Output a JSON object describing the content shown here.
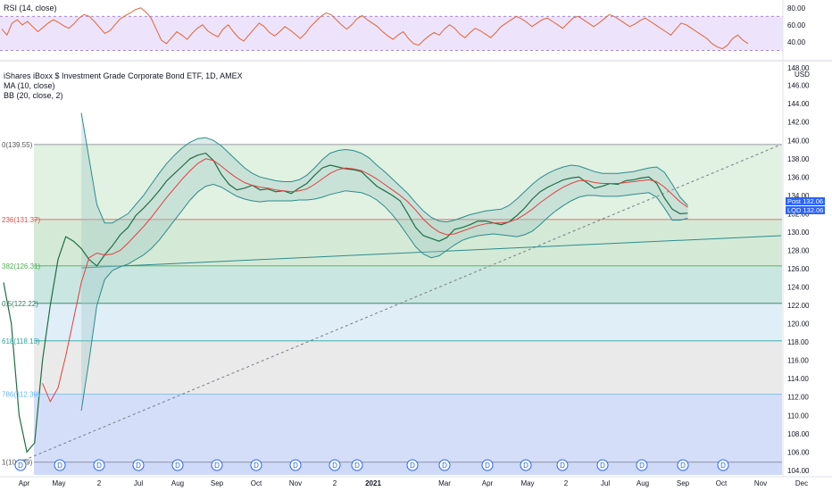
{
  "rsi_panel": {
    "legend": "RSI (14, close)",
    "axis_ticks": [
      "80.00",
      "60.00",
      "40.00"
    ],
    "upper_band": 70,
    "lower_band": 30,
    "values": [
      55,
      48,
      62,
      66,
      60,
      64,
      58,
      52,
      57,
      62,
      66,
      63,
      59,
      56,
      61,
      68,
      72,
      70,
      64,
      57,
      50,
      53,
      60,
      67,
      71,
      74,
      78,
      80,
      75,
      68,
      55,
      42,
      38,
      45,
      52,
      48,
      43,
      50,
      56,
      60,
      53,
      49,
      46,
      55,
      60,
      52,
      45,
      41,
      48,
      55,
      62,
      58,
      51,
      47,
      52,
      58,
      54,
      49,
      44,
      50,
      58,
      64,
      70,
      74,
      72,
      66,
      60,
      55,
      60,
      67,
      71,
      66,
      62,
      58,
      52,
      47,
      43,
      48,
      52,
      44,
      38,
      36,
      42,
      47,
      51,
      48,
      55,
      60,
      56,
      49,
      45,
      51,
      56,
      53,
      49,
      45,
      51,
      58,
      62,
      66,
      70,
      67,
      63,
      58,
      62,
      66,
      68,
      64,
      60,
      56,
      62,
      68,
      70,
      66,
      62,
      58,
      62,
      67,
      72,
      70,
      66,
      62,
      58,
      61,
      65,
      68,
      64,
      60,
      56,
      52,
      48,
      55,
      62,
      60,
      56,
      52,
      48,
      44,
      38,
      34,
      32,
      36,
      44,
      48,
      42,
      38
    ]
  },
  "main_panel": {
    "legend_title": "iShares iBoxx $ Investment Grade Corporate Bond ETF, 1D, AMEX",
    "legend_ma": "MA (10, close)",
    "legend_bb": "BB (20, close, 2)",
    "currency": "USD",
    "price_ticks": [
      "146.00",
      "144.00",
      "142.00",
      "140.00",
      "138.00",
      "136.00",
      "134.00",
      "132.00",
      "130.00",
      "128.00",
      "126.00",
      "124.00",
      "122.00",
      "120.00",
      "118.00",
      "116.00",
      "114.00",
      "112.00",
      "110.00",
      "108.00",
      "106.00",
      "104.00"
    ],
    "top_partial_tick": "148.00",
    "tags": [
      {
        "label": "Post",
        "value": "132.06",
        "color": "#2962ff"
      },
      {
        "label": "LQD",
        "value": "132.06",
        "color": "#2962ff"
      }
    ],
    "time_ticks": [
      "Apr",
      "May",
      "2",
      "Jul",
      "Aug",
      "Sep",
      "Oct",
      "Nov",
      "2",
      "2021",
      "Mar",
      "Apr",
      "May",
      "2",
      "Jul",
      "Aug",
      "Sep",
      "Oct",
      "Nov",
      "Dec"
    ],
    "dividend_marker": "D"
  },
  "chart_data": {
    "type": "line",
    "title": "iShares iBoxx $ Investment Grade Corporate Bond ETF, 1D, AMEX",
    "xlabel": "",
    "ylabel": "USD",
    "ylim": [
      103.5,
      148.5
    ],
    "fib_levels": [
      {
        "label": "0(139.55)",
        "value": 139.55,
        "band_color": "#f7c9c9",
        "line_color": "#787b86"
      },
      {
        "label": "236(131.37)",
        "value": 131.37,
        "band_color": "#d7ecd8",
        "line_color": "#e04b4b"
      },
      {
        "label": "382(126.31)",
        "value": 126.31,
        "band_color": "#c6e3c8",
        "line_color": "#4caf50"
      },
      {
        "label": "0.5(122.22)",
        "value": 122.22,
        "band_color": "#b8ded7",
        "line_color": "#2e7d5e"
      },
      {
        "label": "618(118.13)",
        "value": 118.13,
        "band_color": "#d6e8f6",
        "line_color": "#26a69a"
      },
      {
        "label": "786(112.30)",
        "value": 112.3,
        "band_color": "#e3e3e3",
        "line_color": "#64b5f6"
      },
      {
        "label": "1(104.89)",
        "value": 104.89,
        "band_color": "#c7d3f7",
        "line_color": "#787b86"
      }
    ],
    "series": [
      {
        "name": "LQD",
        "color": "#1f6e43",
        "x": [
          0,
          2,
          4,
          6,
          8,
          10,
          12,
          14,
          16,
          18,
          20,
          22,
          24,
          26,
          28,
          30,
          32,
          34,
          36,
          38,
          40,
          42,
          44,
          46,
          48,
          50,
          52,
          54,
          56,
          58,
          60,
          62,
          64,
          66,
          68,
          70,
          72,
          74,
          76,
          78,
          80,
          82,
          84,
          86,
          88,
          90,
          92,
          94,
          96,
          98,
          100,
          102,
          104,
          106,
          108,
          110,
          112,
          114,
          116,
          118,
          120,
          122,
          124,
          126,
          128,
          130,
          132,
          134,
          136,
          138,
          140,
          142,
          144,
          146,
          148,
          150,
          152,
          154,
          156,
          158,
          160,
          162,
          164,
          166,
          168,
          170,
          172,
          174,
          176,
          178,
          180,
          182,
          184,
          186,
          188,
          190,
          192,
          194,
          196,
          198,
          200
        ],
        "values": [
          124.5,
          120,
          110,
          106,
          107,
          116,
          122,
          127,
          129.5,
          129,
          128.2,
          127,
          126.3,
          127.5,
          128.5,
          129.7,
          130.5,
          131.8,
          132.6,
          133.5,
          134.5,
          135.6,
          136.4,
          137.2,
          138,
          138.4,
          138.6,
          137.8,
          136.3,
          135.2,
          134.6,
          134.8,
          135.1,
          134.6,
          134.7,
          134.4,
          134.5,
          134.2,
          134.8,
          135.3,
          136.2,
          137,
          137.3,
          137.1,
          136.9,
          136.8,
          136.6,
          135.8,
          135,
          134.5,
          134,
          133.4,
          132,
          130.5,
          129.6,
          129.3,
          129,
          129.4,
          130.3,
          130.5,
          130.8,
          131.2,
          131.2,
          131,
          130.8,
          131.1,
          131.8,
          132.6,
          133.6,
          134.4,
          134.9,
          135.3,
          135.7,
          135.9,
          136,
          135.4,
          134.8,
          135,
          135.3,
          135.2,
          135.6,
          135.7,
          135.9,
          136,
          135.3,
          133.7,
          132.5,
          132,
          132.06,
          null,
          null,
          null,
          null,
          null,
          null,
          null,
          null,
          null,
          null,
          null,
          null
        ]
      },
      {
        "name": "MA (10, close)",
        "color": "#e04040",
        "values": [
          null,
          null,
          null,
          null,
          null,
          113.5,
          111.5,
          113,
          116.5,
          120.5,
          124.5,
          127.2,
          127.7,
          127.5,
          127.6,
          128,
          128.8,
          129.7,
          130.6,
          131.6,
          132.7,
          133.8,
          134.8,
          135.8,
          136.7,
          137.5,
          138,
          137.8,
          137.2,
          136.5,
          135.9,
          135.4,
          135.1,
          134.9,
          134.8,
          134.6,
          134.5,
          134.4,
          134.5,
          134.7,
          135.2,
          135.8,
          136.4,
          136.8,
          137,
          136.9,
          136.7,
          136.3,
          135.8,
          135.2,
          134.6,
          134,
          133.3,
          132.4,
          131.4,
          130.6,
          130,
          129.7,
          129.8,
          130.1,
          130.4,
          130.7,
          130.9,
          131,
          131,
          131.1,
          131.4,
          131.9,
          132.5,
          133.2,
          133.8,
          134.4,
          134.9,
          135.3,
          135.6,
          135.6,
          135.4,
          135.3,
          135.3,
          135.3,
          135.4,
          135.5,
          135.6,
          135.7,
          135.5,
          134.9,
          134.1,
          133.3,
          132.7,
          null,
          null,
          null,
          null,
          null,
          null,
          null,
          null,
          null,
          null,
          null,
          null
        ]
      },
      {
        "name": "BB upper",
        "color": "#2b8c8c",
        "values": [
          null,
          null,
          null,
          null,
          null,
          null,
          null,
          null,
          null,
          null,
          143,
          138,
          133,
          131,
          131,
          131.5,
          132,
          133,
          134,
          135.2,
          136.4,
          137.5,
          138.4,
          139.2,
          139.8,
          140.2,
          140.3,
          140,
          139.4,
          138.6,
          137.8,
          137,
          136.4,
          136,
          135.8,
          135.6,
          135.5,
          135.5,
          135.7,
          136.2,
          137,
          137.9,
          138.6,
          138.9,
          139,
          138.9,
          138.6,
          138.1,
          137.3,
          136.6,
          135.8,
          135,
          134.2,
          133.2,
          132.3,
          131.6,
          131.2,
          131.1,
          131.3,
          131.6,
          131.9,
          132.1,
          132.3,
          132.4,
          132.5,
          132.9,
          133.6,
          134.4,
          135.2,
          135.9,
          136.4,
          136.8,
          137.1,
          137.3,
          137.2,
          136.9,
          136.6,
          136.4,
          136.4,
          136.4,
          136.5,
          136.6,
          136.8,
          137,
          137.1,
          136.5,
          135.2,
          133.8,
          132.9,
          null,
          null,
          null,
          null,
          null,
          null,
          null,
          null,
          null,
          null,
          null,
          null
        ]
      },
      {
        "name": "BB lower",
        "color": "#2b8c8c",
        "values": [
          null,
          null,
          null,
          null,
          null,
          null,
          null,
          null,
          null,
          null,
          110.5,
          116,
          122,
          124.8,
          125.8,
          126.2,
          126.5,
          127,
          127.5,
          128.2,
          129.1,
          130.2,
          131.3,
          132.4,
          133.5,
          134.4,
          135,
          135.2,
          134.9,
          134.4,
          133.9,
          133.6,
          133.4,
          133.3,
          133.4,
          133.4,
          133.4,
          133.4,
          133.5,
          133.5,
          133.6,
          133.8,
          134.1,
          134.3,
          134.5,
          134.4,
          134.3,
          134,
          133.5,
          132.8,
          131.9,
          130.8,
          129.6,
          128.4,
          127.6,
          127.2,
          127.4,
          128,
          128.6,
          129.1,
          129.4,
          129.6,
          129.7,
          129.8,
          129.7,
          129.6,
          129.5,
          129.7,
          130.1,
          130.8,
          131.6,
          132.3,
          132.9,
          133.4,
          133.8,
          134,
          134,
          133.9,
          133.9,
          133.9,
          134,
          134.1,
          134.2,
          134.3,
          133.8,
          132.6,
          131.3,
          131.3,
          131.5,
          null,
          null,
          null,
          null,
          null,
          null,
          null,
          null,
          null,
          null,
          null,
          null
        ]
      }
    ],
    "trend_lines": [
      {
        "name": "dashed",
        "from": [
          4,
          104.89
        ],
        "to": [
          200,
          139.55
        ],
        "style": "dashed"
      },
      {
        "name": "support",
        "from": [
          20,
          126.1
        ],
        "to": [
          200,
          129.6
        ],
        "style": "solid"
      }
    ],
    "dividend_positions": [
      1,
      14,
      28,
      42,
      55,
      68,
      80,
      92,
      103,
      114,
      125,
      146,
      160,
      172,
      183,
      196,
      208,
      221,
      233,
      246,
      260
    ]
  }
}
